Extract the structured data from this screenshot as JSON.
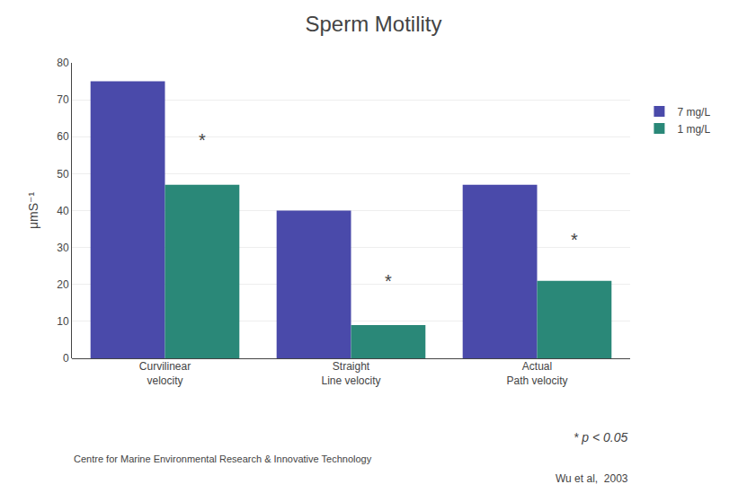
{
  "chart_data": {
    "type": "bar",
    "title": "Sperm Motility",
    "y_label": "μmS⁻¹",
    "categories": [
      "Curvilinear\nvelocity",
      "Straight\nLine velocity",
      "Actual\nPath velocity"
    ],
    "series": [
      {
        "name": "7 mg/L",
        "color": "#4a4aaa",
        "values": [
          75,
          40,
          47
        ]
      },
      {
        "name": "1 mg/L",
        "color": "#2a8878",
        "values": [
          47,
          9,
          21
        ]
      }
    ],
    "ylim": [
      0,
      80
    ],
    "yticks": [
      0,
      10,
      20,
      30,
      40,
      50,
      60,
      70,
      80
    ],
    "grid": true,
    "legend": "right",
    "annotations": [
      {
        "text": "*",
        "category": "Curvilinear\nvelocity",
        "y": 59
      },
      {
        "text": "*",
        "category": "Straight\nLine velocity",
        "y": 21
      },
      {
        "text": "*",
        "category": "Actual\nPath velocity",
        "y": 32
      },
      {
        "text": "* p < 0.05"
      },
      {
        "text": "Centre for Marine Environmental Research & Innovative Technology"
      },
      {
        "text": "Wu et al,  2003"
      }
    ]
  }
}
